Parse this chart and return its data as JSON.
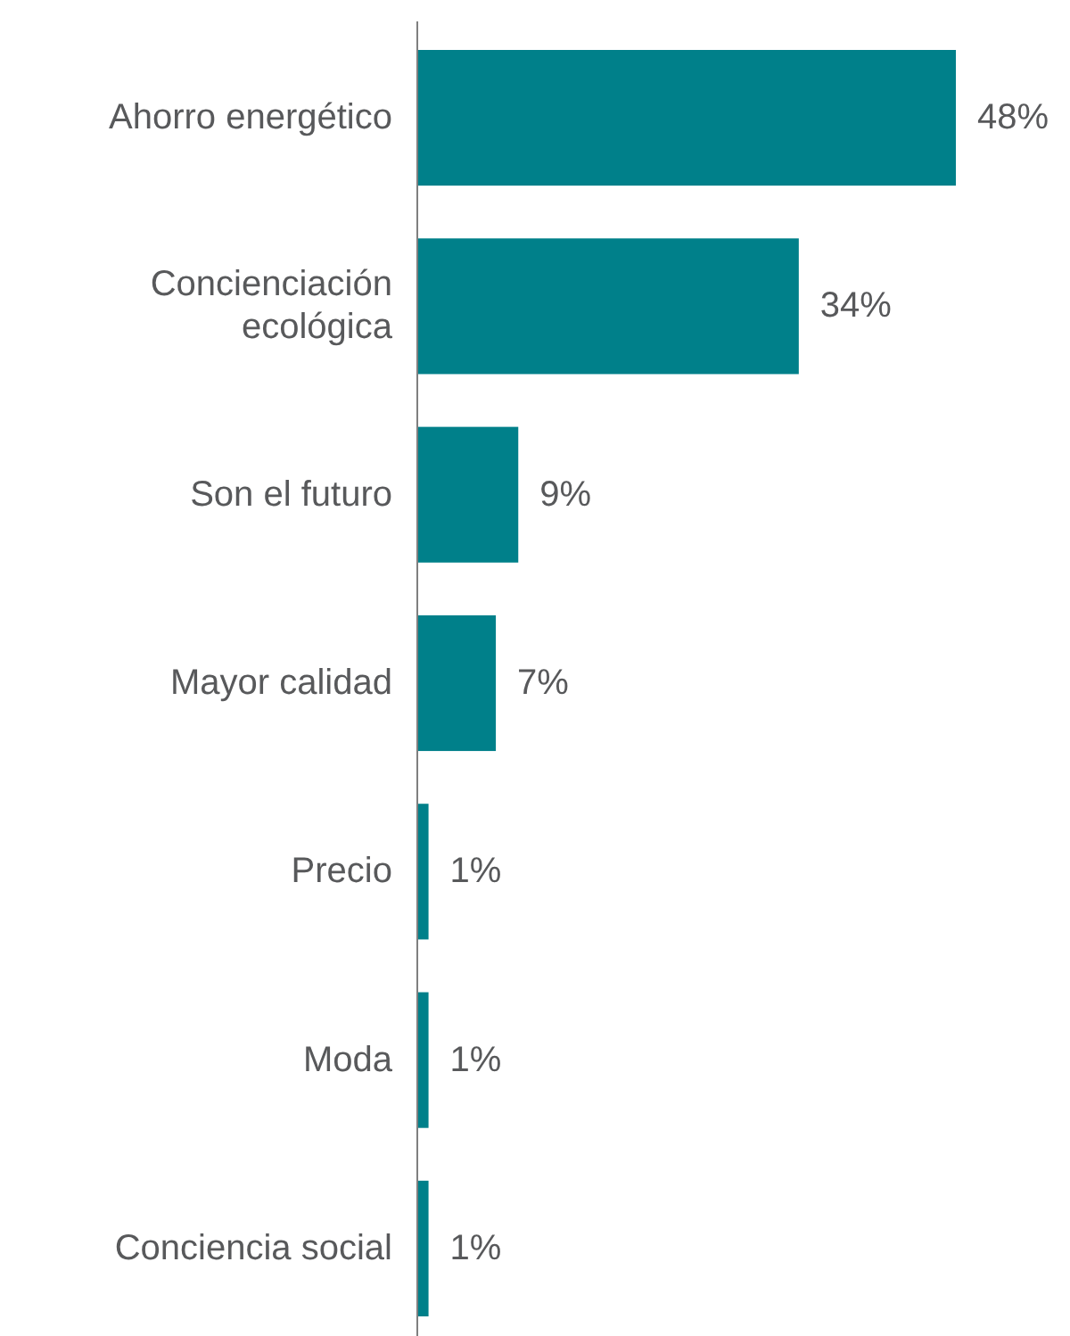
{
  "chart_data": {
    "type": "bar",
    "orientation": "horizontal",
    "categories": [
      "Ahorro energético",
      "Concienciación ecológica",
      "Son el futuro",
      "Mayor calidad",
      "Precio",
      "Moda",
      "Conciencia social"
    ],
    "values": [
      48,
      34,
      9,
      7,
      1,
      1,
      1
    ],
    "value_labels": [
      "48%",
      "34%",
      "9%",
      "7%",
      "1%",
      "1%",
      "1%"
    ],
    "color": "#00808a"
  }
}
